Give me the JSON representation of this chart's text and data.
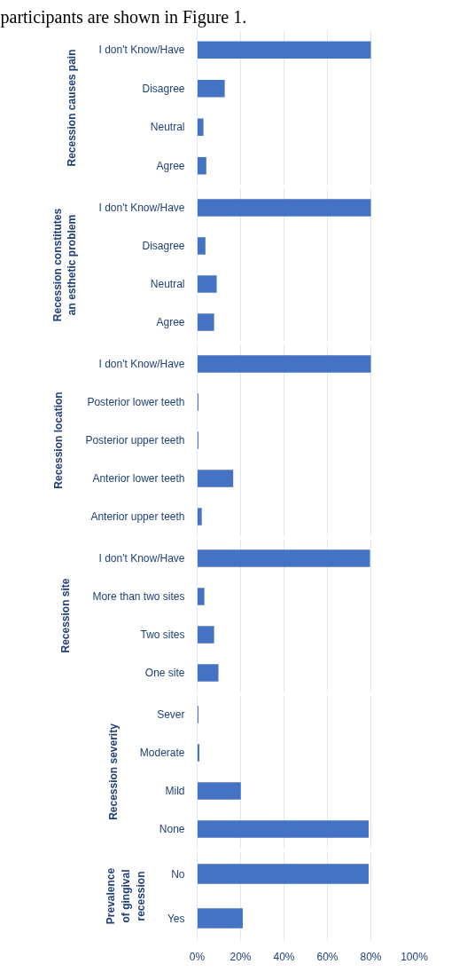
{
  "chart_data": [
    {
      "type": "bar",
      "orientation": "horizontal",
      "ylabel": "Recession causes pain",
      "annotations": [
        "participants are shown in Figure 1."
      ],
      "categories": [
        "I don't Know/Have",
        "Disagree",
        "Neutral",
        "Agree"
      ],
      "values": [
        80,
        12.7,
        2.9,
        4.2
      ],
      "color": "#4472c4",
      "xlim": [
        0,
        100
      ],
      "xticks": [
        0,
        20,
        40,
        60,
        80,
        100
      ],
      "grid": "x",
      "tick_labels": "y"
    },
    {
      "type": "bar",
      "orientation": "horizontal",
      "ylabel": "Recession constitutes an esthetic problem",
      "categories": [
        "I don't Know/Have",
        "Disagree",
        "Neutral",
        "Agree"
      ],
      "values": [
        80,
        3.8,
        9.0,
        7.8
      ],
      "color": "#4472c4",
      "xlim": [
        0,
        100
      ],
      "xticks": [
        0,
        20,
        40,
        60,
        80,
        100
      ],
      "grid": "x",
      "tick_labels": "y"
    },
    {
      "type": "bar",
      "orientation": "horizontal",
      "ylabel": "Recession location",
      "categories": [
        "I don't Know/Have",
        "Posterior lower teeth",
        "Posterior upper teeth",
        "Anterior lower teeth",
        "Anterior upper teeth"
      ],
      "values": [
        80,
        0.6,
        0.6,
        16.6,
        2.1
      ],
      "color": "#4472c4",
      "xlim": [
        0,
        100
      ],
      "xticks": [
        0,
        20,
        40,
        60,
        80,
        100
      ],
      "grid": "x",
      "tick_labels": "y"
    },
    {
      "type": "bar",
      "orientation": "horizontal",
      "ylabel": "Recession site",
      "categories": [
        "I don't Know/Have",
        "More than two sites",
        "Two sites",
        "One site"
      ],
      "values": [
        79.6,
        3.3,
        7.8,
        9.8
      ],
      "color": "#4472c4",
      "xlim": [
        0,
        100
      ],
      "xticks": [
        0,
        20,
        40,
        60,
        80,
        100
      ],
      "grid": "x",
      "tick_labels": "y"
    },
    {
      "type": "bar",
      "orientation": "horizontal",
      "ylabel": "Recession severity",
      "categories": [
        "Sever",
        "Moderate",
        "Mild",
        "None"
      ],
      "values": [
        0.6,
        1.0,
        20.1,
        79
      ],
      "color": "#4472c4",
      "xlim": [
        0,
        100
      ],
      "xticks": [
        0,
        20,
        40,
        60,
        80,
        100
      ],
      "grid": "x",
      "tick_labels": "y"
    },
    {
      "type": "bar",
      "orientation": "horizontal",
      "ylabel": "Prevalence of gingival recession",
      "categories": [
        "No",
        "Yes"
      ],
      "values": [
        79,
        21
      ],
      "color": "#4472c4",
      "xlim": [
        0,
        100
      ],
      "xticks": [
        {
          "value": 0,
          "label": "0%"
        },
        {
          "value": 20,
          "label": "20%"
        },
        {
          "value": 40,
          "label": "40%"
        },
        {
          "value": 60,
          "label": "60%"
        },
        {
          "value": 80,
          "label": "80%"
        },
        {
          "value": 100,
          "label": "100%"
        }
      ],
      "grid": "x"
    }
  ]
}
